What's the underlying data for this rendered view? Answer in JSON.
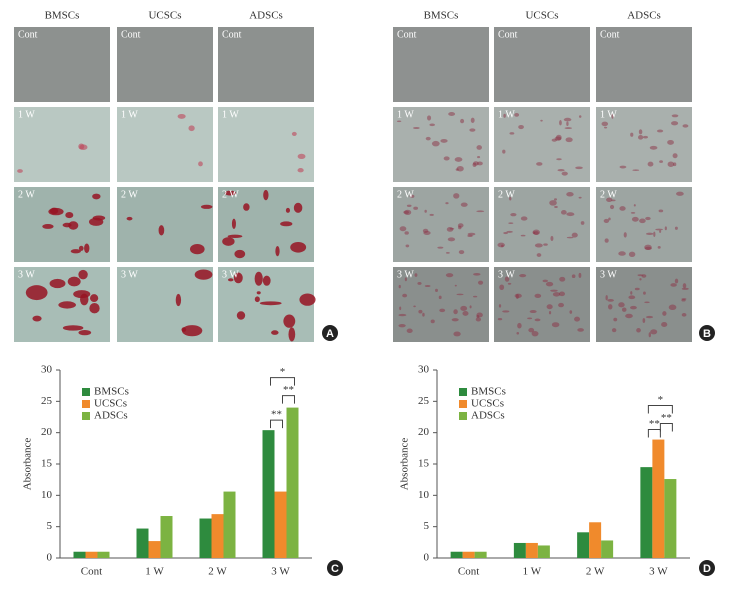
{
  "image_panels": [
    {
      "label": "A",
      "headers": [
        "BMSCs",
        "UCSCs",
        "ADSCs"
      ],
      "row_labels": [
        "Cont",
        "1 W",
        "2 W",
        "3 W"
      ]
    },
    {
      "label": "B",
      "headers": [
        "BMSCs",
        "UCSCs",
        "ADSCs"
      ],
      "row_labels": [
        "Cont",
        "1 W",
        "2 W",
        "3 W"
      ]
    }
  ],
  "chart_data": [
    {
      "type": "bar",
      "label": "C",
      "y_label": "Absorbance",
      "categories": [
        "Cont",
        "1 W",
        "2 W",
        "3 W"
      ],
      "series": [
        {
          "name": "BMSCs",
          "color": "#2e8b3e",
          "values": [
            1,
            4.7,
            6.3,
            20.4
          ]
        },
        {
          "name": "UCSCs",
          "color": "#f08a2c",
          "values": [
            1,
            2.7,
            7.0,
            10.6
          ]
        },
        {
          "name": "ADSCs",
          "color": "#7cb342",
          "values": [
            1,
            6.7,
            10.6,
            24.0
          ]
        }
      ],
      "ylim": [
        0,
        30
      ],
      "yticks": [
        0,
        5,
        10,
        15,
        20,
        25,
        30
      ],
      "annotations": [
        "*",
        "**",
        "**"
      ]
    },
    {
      "type": "bar",
      "label": "D",
      "y_label": "Absorbance",
      "categories": [
        "Cont",
        "1 W",
        "2 W",
        "3 W"
      ],
      "series": [
        {
          "name": "BMSCs",
          "color": "#2e8b3e",
          "values": [
            1,
            2.4,
            4.1,
            14.5
          ]
        },
        {
          "name": "UCSCs",
          "color": "#f08a2c",
          "values": [
            1,
            2.4,
            5.7,
            18.9
          ]
        },
        {
          "name": "ADSCs",
          "color": "#7cb342",
          "values": [
            1,
            2.0,
            2.8,
            12.6
          ]
        }
      ],
      "ylim": [
        0,
        30
      ],
      "yticks": [
        0,
        5,
        10,
        15,
        20,
        25,
        30
      ],
      "annotations": [
        "*",
        "**",
        "**"
      ]
    }
  ]
}
